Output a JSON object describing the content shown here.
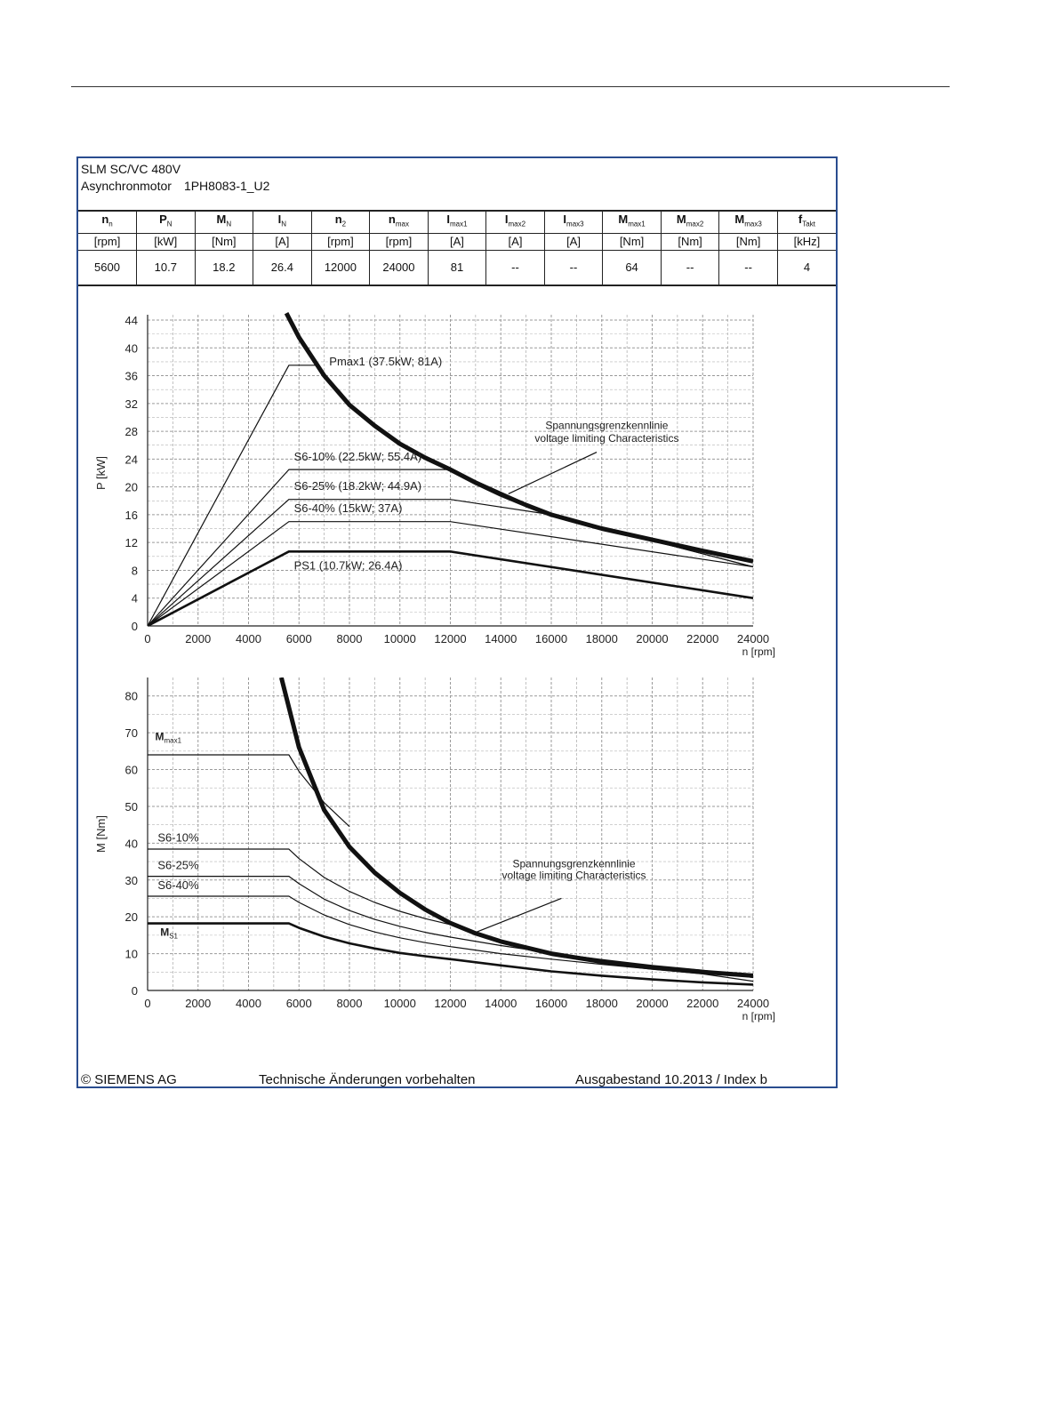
{
  "header": {
    "title_line1": "SLM SC/VC 480V",
    "title_line2_label": "Asynchronmotor",
    "title_line2_model": "1PH8083-1_U2"
  },
  "spec_table": {
    "columns": [
      {
        "sym": "n",
        "sub": "n",
        "unit": "[rpm]",
        "value": "5600"
      },
      {
        "sym": "P",
        "sub": "N",
        "unit": "[kW]",
        "value": "10.7"
      },
      {
        "sym": "M",
        "sub": "N",
        "unit": "[Nm]",
        "value": "18.2"
      },
      {
        "sym": "I",
        "sub": "N",
        "unit": "[A]",
        "value": "26.4"
      },
      {
        "sym": "n",
        "sub": "2",
        "unit": "[rpm]",
        "value": "12000"
      },
      {
        "sym": "n",
        "sub": "max",
        "unit": "[rpm]",
        "value": "24000"
      },
      {
        "sym": "I",
        "sub": "max1",
        "unit": "[A]",
        "value": "81"
      },
      {
        "sym": "I",
        "sub": "max2",
        "unit": "[A]",
        "value": "--"
      },
      {
        "sym": "I",
        "sub": "max3",
        "unit": "[A]",
        "value": "--"
      },
      {
        "sym": "M",
        "sub": "max1",
        "unit": "[Nm]",
        "value": "64"
      },
      {
        "sym": "M",
        "sub": "max2",
        "unit": "[Nm]",
        "value": "--"
      },
      {
        "sym": "M",
        "sub": "max3",
        "unit": "[Nm]",
        "value": "--"
      },
      {
        "sym": "f",
        "sub": "Takt",
        "unit": "[kHz]",
        "value": "4"
      }
    ]
  },
  "footer": {
    "copyright": "© SIEMENS AG",
    "notice": "Technische Änderungen vorbehalten",
    "edition": "Ausgabestand 10.2013 / Index b"
  },
  "chart_data": [
    {
      "type": "line",
      "title": "",
      "xlabel": "n [rpm]",
      "ylabel": "P [kW]",
      "xlim": [
        0,
        24000
      ],
      "ylim": [
        0,
        44
      ],
      "xticks": [
        0,
        2000,
        4000,
        6000,
        8000,
        10000,
        12000,
        14000,
        16000,
        18000,
        20000,
        22000,
        24000
      ],
      "yticks": [
        0,
        4,
        8,
        12,
        16,
        20,
        24,
        28,
        32,
        36,
        40,
        44
      ],
      "grid": true,
      "series": [
        {
          "name": "Pmax1 (37.5kW; 81A)",
          "weight": "thin",
          "x": [
            0,
            5600,
            6800
          ],
          "y": [
            0,
            37.5,
            37.5
          ]
        },
        {
          "name": "S6-10% (22.5kW; 55.4A)",
          "weight": "thin",
          "x": [
            0,
            5600,
            12000,
            16000,
            24000
          ],
          "y": [
            0,
            22.5,
            22.5,
            16,
            8.5
          ]
        },
        {
          "name": "S6-25% (18.2kW; 44.9A)",
          "weight": "thin",
          "x": [
            0,
            5600,
            12000,
            16000,
            24000
          ],
          "y": [
            0,
            18.2,
            18.2,
            16,
            8.5
          ]
        },
        {
          "name": "S6-40% (15kW; 37A)",
          "weight": "thin",
          "x": [
            0,
            5600,
            12000,
            24000
          ],
          "y": [
            0,
            15,
            15,
            8.5
          ]
        },
        {
          "name": "PS1 (10.7kW; 26.4A)",
          "weight": "medium",
          "x": [
            0,
            5600,
            12000,
            24000
          ],
          "y": [
            0,
            10.7,
            10.7,
            4
          ]
        },
        {
          "name": "Spannungsgrenzkennlinie",
          "weight": "bold",
          "x": [
            5500,
            6000,
            7000,
            8000,
            9000,
            10000,
            11000,
            12000,
            13000,
            14000,
            15000,
            16000,
            18000,
            20000,
            22000,
            24000
          ],
          "y": [
            45,
            41.5,
            36,
            31.8,
            28.8,
            26.2,
            24.2,
            22.5,
            20.6,
            18.9,
            17.4,
            16,
            14,
            12.4,
            10.8,
            9.3
          ]
        }
      ],
      "annotations": [
        {
          "text": "Pmax1 (37.5kW; 81A)",
          "x": 7200,
          "y": 37.5
        },
        {
          "text": "S6-10% (22.5kW; 55.4A)",
          "x": 5800,
          "y": 23.8
        },
        {
          "text": "S6-25% (18.2kW; 44.9A)",
          "x": 5800,
          "y": 19.6
        },
        {
          "text": "S6-40% (15kW; 37A)",
          "x": 5800,
          "y": 16.4
        },
        {
          "text": "PS1 (10.7kW; 26.4A)",
          "x": 5800,
          "y": 8.1
        },
        {
          "text": "Spannungsgrenzkennlinie",
          "x": 18200,
          "y": 28.3
        },
        {
          "text": "voltage limiting  Characteristics",
          "x": 18200,
          "y": 26.5
        }
      ],
      "pointer": {
        "x": [
          14300,
          17800
        ],
        "y": [
          19,
          25
        ]
      }
    },
    {
      "type": "line",
      "title": "",
      "xlabel": "n [rpm]",
      "ylabel": "M [Nm]",
      "xlim": [
        0,
        24000
      ],
      "ylim": [
        0,
        85
      ],
      "xticks": [
        0,
        2000,
        4000,
        6000,
        8000,
        10000,
        12000,
        14000,
        16000,
        18000,
        20000,
        22000,
        24000
      ],
      "yticks": [
        0,
        10,
        20,
        30,
        40,
        50,
        60,
        70,
        80
      ],
      "grid": true,
      "series": [
        {
          "name": "Mmax1",
          "weight": "thin",
          "x": [
            0,
            5600,
            6000,
            7000,
            8000
          ],
          "y": [
            64,
            64,
            59.5,
            51,
            44.5
          ]
        },
        {
          "name": "S6-10%",
          "weight": "thin",
          "x": [
            0,
            5600,
            6000,
            7000,
            8000,
            9000,
            10000,
            11000,
            12000,
            13000,
            14000,
            15000,
            16000,
            18000,
            20000,
            22000,
            24000
          ],
          "y": [
            38.4,
            38.4,
            35.8,
            30.7,
            26.9,
            23.9,
            21.5,
            19.5,
            17.9,
            15.1,
            13,
            11.3,
            9.8,
            7.7,
            6.2,
            5.1,
            4.2
          ]
        },
        {
          "name": "S6-25%",
          "weight": "thin",
          "x": [
            0,
            5600,
            6000,
            7000,
            8000,
            9000,
            10000,
            11000,
            12000,
            14000,
            16000,
            18000,
            20000,
            22000,
            24000
          ],
          "y": [
            31,
            31,
            29,
            24.8,
            21.7,
            19.3,
            17.4,
            15.8,
            14.5,
            12.2,
            10.2,
            8.4,
            6.8,
            5.5,
            3.5
          ]
        },
        {
          "name": "S6-40%",
          "weight": "thin",
          "x": [
            0,
            5600,
            6000,
            7000,
            8000,
            9000,
            10000,
            11000,
            12000,
            14000,
            16000,
            18000,
            20000,
            22000,
            24000
          ],
          "y": [
            25.6,
            25.6,
            23.9,
            20.5,
            17.9,
            15.9,
            14.3,
            13,
            11.9,
            10,
            8.5,
            7.1,
            5.8,
            4.5,
            2.5
          ]
        },
        {
          "name": "MS1",
          "weight": "medium",
          "x": [
            0,
            5600,
            6000,
            7000,
            8000,
            9000,
            10000,
            11000,
            12000,
            14000,
            16000,
            18000,
            20000,
            22000,
            24000
          ],
          "y": [
            18.2,
            18.2,
            17,
            14.6,
            12.8,
            11.4,
            10.2,
            9.3,
            8.5,
            6.8,
            5.2,
            4,
            3,
            2.2,
            1.6
          ]
        },
        {
          "name": "Spannungsgrenzkennlinie",
          "weight": "bold",
          "x": [
            5300,
            6000,
            7000,
            8000,
            9000,
            10000,
            11000,
            12000,
            13000,
            14000,
            16000,
            18000,
            20000,
            22000,
            24000
          ],
          "y": [
            85,
            66,
            49,
            39,
            32,
            26.5,
            22,
            18.3,
            15.5,
            13.3,
            10,
            7.8,
            6.2,
            5,
            4
          ]
        }
      ],
      "annotations": [
        {
          "text": "S6-10%",
          "x": 400,
          "y": 40.5
        },
        {
          "text": "S6-25%",
          "x": 400,
          "y": 33
        },
        {
          "text": "S6-40%",
          "x": 400,
          "y": 27.5
        },
        {
          "text": "Spannungsgrenzkennlinie",
          "x": 16900,
          "y": 33.5
        },
        {
          "text": "voltage limiting  Characteristics",
          "x": 16900,
          "y": 30.3
        }
      ],
      "labels": {
        "mmax1": {
          "main": "M",
          "sub": "max1",
          "x": 300,
          "y": 68
        },
        "ms1": {
          "main": "M",
          "sub": "S1",
          "x": 500,
          "y": 14.8
        }
      },
      "pointer": {
        "x": [
          12900,
          16400
        ],
        "y": [
          15.5,
          25
        ]
      }
    }
  ]
}
